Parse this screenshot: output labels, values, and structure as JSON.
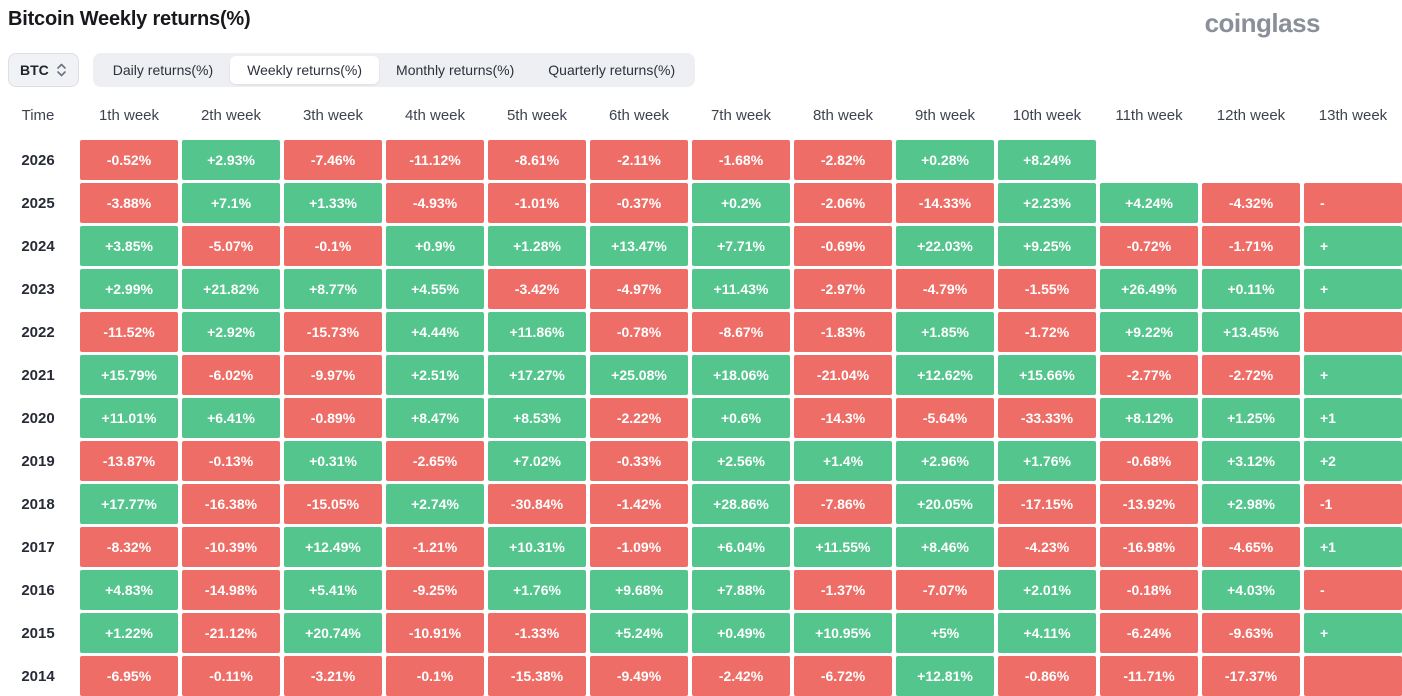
{
  "header": {
    "title": "Bitcoin Weekly returns(%)",
    "logo": "coinglass"
  },
  "controls": {
    "symbol": "BTC",
    "tabs": [
      "Daily returns(%)",
      "Weekly returns(%)",
      "Monthly returns(%)",
      "Quarterly returns(%)"
    ],
    "active_tab_index": 1
  },
  "colors": {
    "positive": "#55c58e",
    "negative": "#ee6e67"
  },
  "chart_data": {
    "type": "heatmap",
    "title": "Bitcoin Weekly returns(%)",
    "time_label": "Time",
    "unit": "%",
    "columns": [
      "1th week",
      "2th week",
      "3th week",
      "4th week",
      "5th week",
      "6th week",
      "7th week",
      "8th week",
      "9th week",
      "10th week",
      "11th week",
      "12th week",
      "13th week"
    ],
    "rows": [
      {
        "year": "2026",
        "values": [
          "-0.52%",
          "+2.93%",
          "-7.46%",
          "-11.12%",
          "-8.61%",
          "-2.11%",
          "-1.68%",
          "-2.82%",
          "+0.28%",
          "+8.24%"
        ],
        "col13": null
      },
      {
        "year": "2025",
        "values": [
          "-3.88%",
          "+7.1%",
          "+1.33%",
          "-4.93%",
          "-1.01%",
          "-0.37%",
          "+0.2%",
          "-2.06%",
          "-14.33%",
          "+2.23%",
          "+4.24%",
          "-4.32%"
        ],
        "col13": {
          "text": "-",
          "color": "neg"
        }
      },
      {
        "year": "2024",
        "values": [
          "+3.85%",
          "-5.07%",
          "-0.1%",
          "+0.9%",
          "+1.28%",
          "+13.47%",
          "+7.71%",
          "-0.69%",
          "+22.03%",
          "+9.25%",
          "-0.72%",
          "-1.71%"
        ],
        "col13": {
          "text": "+",
          "color": "pos"
        }
      },
      {
        "year": "2023",
        "values": [
          "+2.99%",
          "+21.82%",
          "+8.77%",
          "+4.55%",
          "-3.42%",
          "-4.97%",
          "+11.43%",
          "-2.97%",
          "-4.79%",
          "-1.55%",
          "+26.49%",
          "+0.11%"
        ],
        "col13": {
          "text": "+",
          "color": "pos"
        }
      },
      {
        "year": "2022",
        "values": [
          "-11.52%",
          "+2.92%",
          "-15.73%",
          "+4.44%",
          "+11.86%",
          "-0.78%",
          "-8.67%",
          "-1.83%",
          "+1.85%",
          "-1.72%",
          "+9.22%",
          "+13.45%"
        ],
        "col13": {
          "text": "",
          "color": "neg"
        }
      },
      {
        "year": "2021",
        "values": [
          "+15.79%",
          "-6.02%",
          "-9.97%",
          "+2.51%",
          "+17.27%",
          "+25.08%",
          "+18.06%",
          "-21.04%",
          "+12.62%",
          "+15.66%",
          "-2.77%",
          "-2.72%"
        ],
        "col13": {
          "text": "+",
          "color": "pos"
        }
      },
      {
        "year": "2020",
        "values": [
          "+11.01%",
          "+6.41%",
          "-0.89%",
          "+8.47%",
          "+8.53%",
          "-2.22%",
          "+0.6%",
          "-14.3%",
          "-5.64%",
          "-33.33%",
          "+8.12%",
          "+1.25%"
        ],
        "col13": {
          "text": "+1",
          "color": "pos"
        }
      },
      {
        "year": "2019",
        "values": [
          "-13.87%",
          "-0.13%",
          "+0.31%",
          "-2.65%",
          "+7.02%",
          "-0.33%",
          "+2.56%",
          "+1.4%",
          "+2.96%",
          "+1.76%",
          "-0.68%",
          "+3.12%"
        ],
        "col13": {
          "text": "+2",
          "color": "pos"
        }
      },
      {
        "year": "2018",
        "values": [
          "+17.77%",
          "-16.38%",
          "-15.05%",
          "+2.74%",
          "-30.84%",
          "-1.42%",
          "+28.86%",
          "-7.86%",
          "+20.05%",
          "-17.15%",
          "-13.92%",
          "+2.98%"
        ],
        "col13": {
          "text": "-1",
          "color": "neg"
        }
      },
      {
        "year": "2017",
        "values": [
          "-8.32%",
          "-10.39%",
          "+12.49%",
          "-1.21%",
          "+10.31%",
          "-1.09%",
          "+6.04%",
          "+11.55%",
          "+8.46%",
          "-4.23%",
          "-16.98%",
          "-4.65%"
        ],
        "col13": {
          "text": "+1",
          "color": "pos"
        }
      },
      {
        "year": "2016",
        "values": [
          "+4.83%",
          "-14.98%",
          "+5.41%",
          "-9.25%",
          "+1.76%",
          "+9.68%",
          "+7.88%",
          "-1.37%",
          "-7.07%",
          "+2.01%",
          "-0.18%",
          "+4.03%"
        ],
        "col13": {
          "text": "-",
          "color": "neg"
        }
      },
      {
        "year": "2015",
        "values": [
          "+1.22%",
          "-21.12%",
          "+20.74%",
          "-10.91%",
          "-1.33%",
          "+5.24%",
          "+0.49%",
          "+10.95%",
          "+5%",
          "+4.11%",
          "-6.24%",
          "-9.63%"
        ],
        "col13": {
          "text": "+",
          "color": "pos"
        }
      },
      {
        "year": "2014",
        "values": [
          "-6.95%",
          "-0.11%",
          "-3.21%",
          "-0.1%",
          "-15.38%",
          "-9.49%",
          "-2.42%",
          "-6.72%",
          "+12.81%",
          "-0.86%",
          "-11.71%",
          "-17.37%"
        ],
        "col13": {
          "text": "",
          "color": "neg"
        }
      }
    ]
  }
}
